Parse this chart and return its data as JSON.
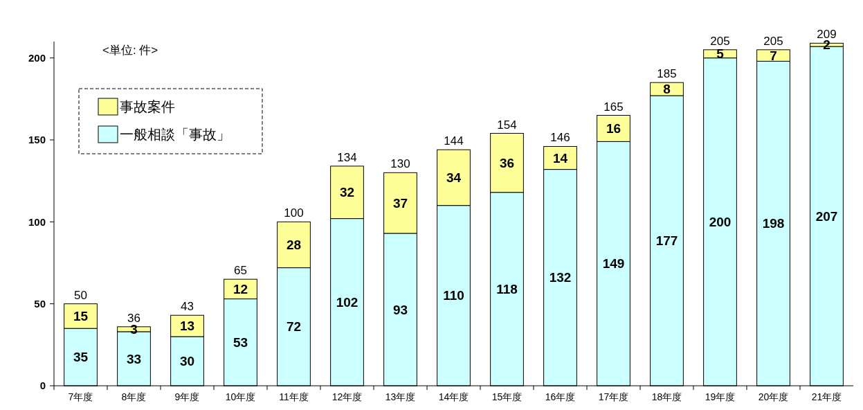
{
  "chart_data": {
    "type": "bar",
    "stacked": true,
    "categories": [
      "7年度",
      "8年度",
      "9年度",
      "10年度",
      "11年度",
      "12年度",
      "13年度",
      "14年度",
      "15年度",
      "16年度",
      "17年度",
      "18年度",
      "19年度",
      "20年度",
      "21年度"
    ],
    "series": [
      {
        "name": "一般相談「事故」",
        "color": "#ccffff",
        "values": [
          35,
          33,
          30,
          53,
          72,
          102,
          93,
          110,
          118,
          132,
          149,
          177,
          200,
          198,
          207
        ]
      },
      {
        "name": "事故案件",
        "color": "#ffff99",
        "values": [
          15,
          3,
          13,
          12,
          28,
          32,
          37,
          34,
          36,
          14,
          16,
          8,
          5,
          7,
          2
        ]
      }
    ],
    "totals": [
      "50",
      "36",
      "43",
      "65",
      "100",
      "134",
      "130",
      "144",
      "154",
      "146",
      "165",
      "185",
      "205",
      "205",
      "209"
    ],
    "ylim": [
      0,
      210
    ],
    "yticks": [
      0,
      50,
      100,
      150,
      200
    ],
    "legend": "top left",
    "data_labels": true,
    "annotations": [
      "<単位: 件>"
    ]
  }
}
